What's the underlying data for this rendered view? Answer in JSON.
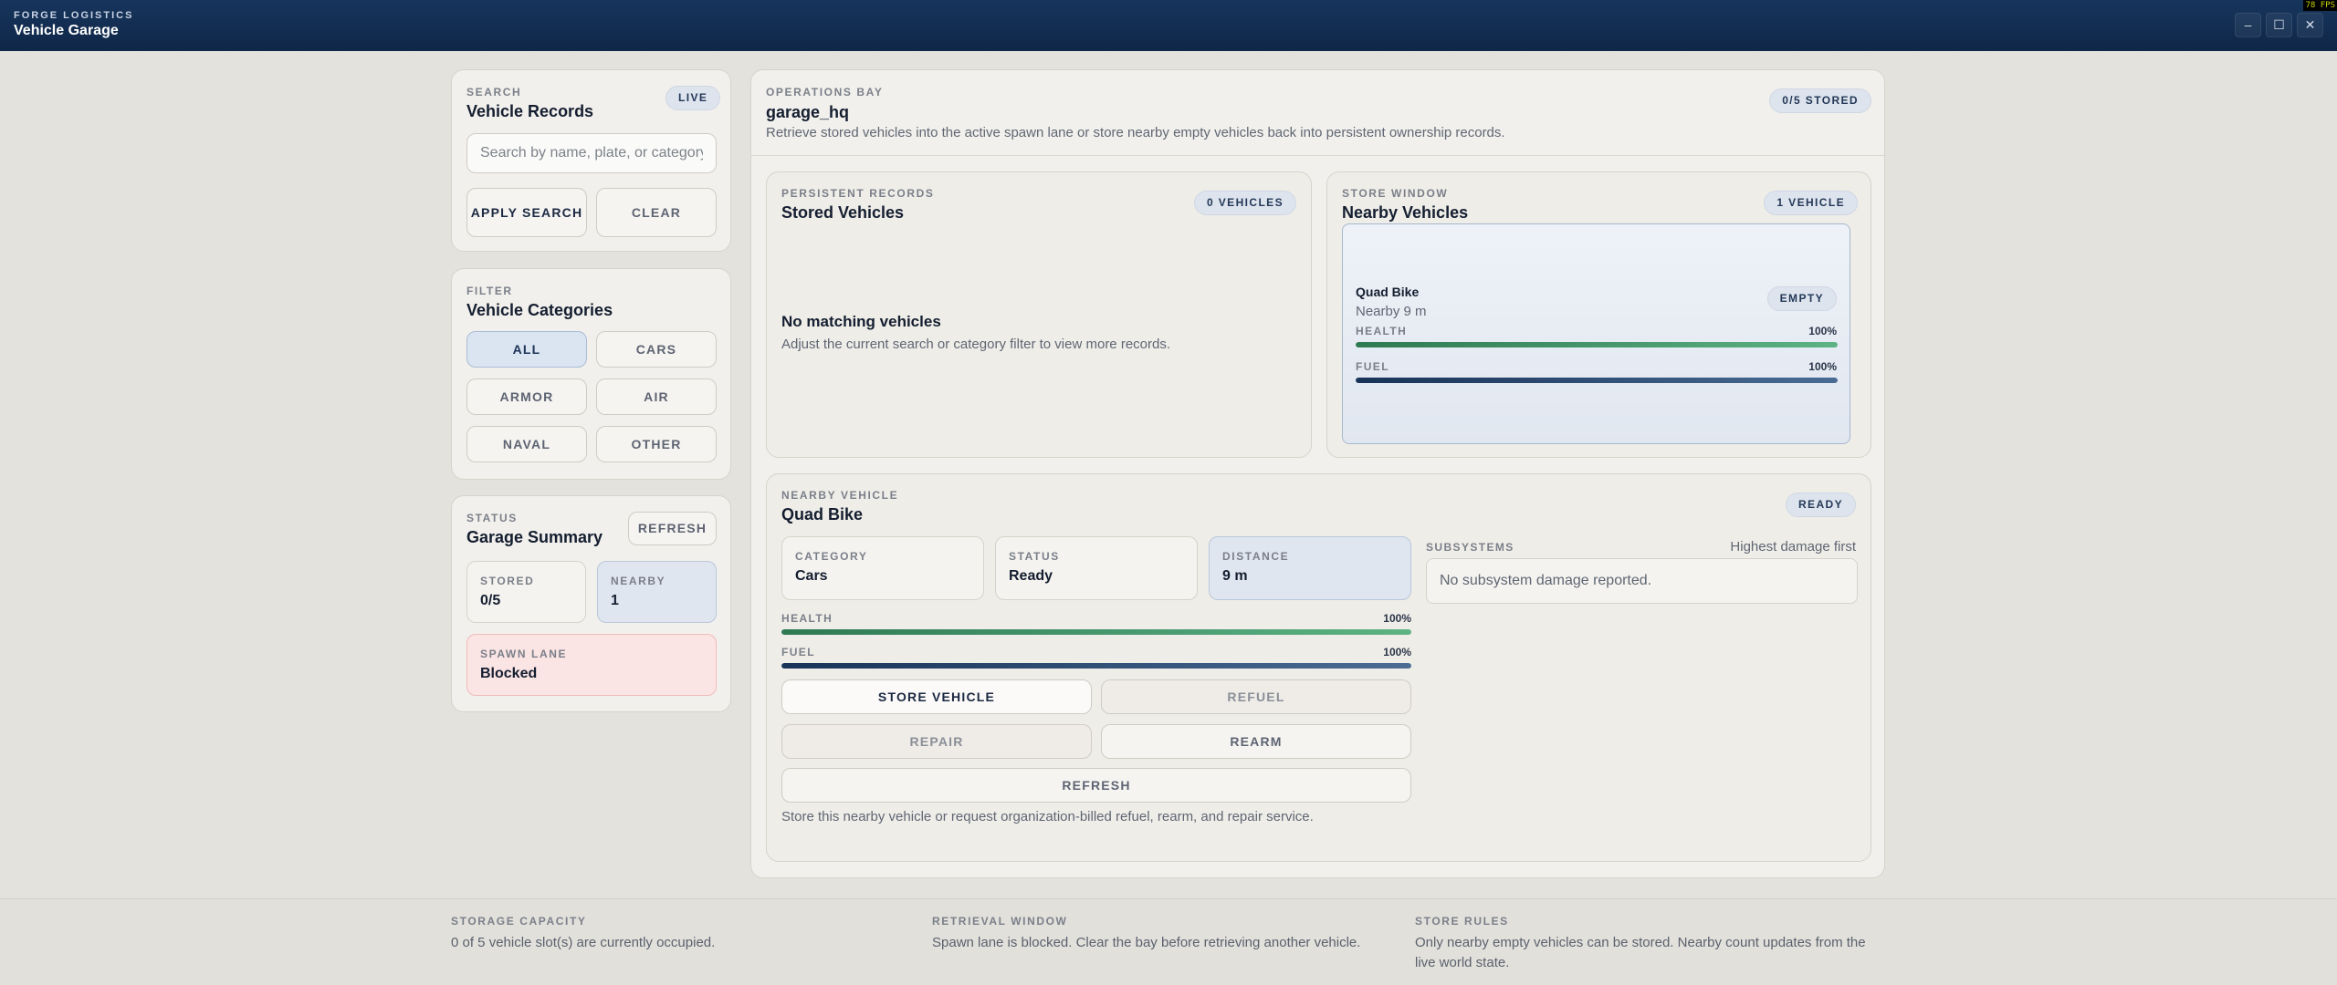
{
  "window": {
    "brand": "FORGE LOGISTICS",
    "title": "Vehicle Garage",
    "minimize": "–",
    "maximize": "☐",
    "close": "✕",
    "fps": "78 FPS"
  },
  "search": {
    "eyebrow": "SEARCH",
    "title": "Vehicle Records",
    "badge": "LIVE",
    "placeholder": "Search by name, plate, or category",
    "value": "",
    "apply_label": "APPLY SEARCH",
    "clear_label": "CLEAR"
  },
  "filter": {
    "eyebrow": "FILTER",
    "title": "Vehicle Categories",
    "categories": [
      {
        "label": "ALL",
        "selected": true
      },
      {
        "label": "CARS",
        "selected": false
      },
      {
        "label": "ARMOR",
        "selected": false
      },
      {
        "label": "AIR",
        "selected": false
      },
      {
        "label": "NAVAL",
        "selected": false
      },
      {
        "label": "OTHER",
        "selected": false
      }
    ]
  },
  "status": {
    "eyebrow": "STATUS",
    "title": "Garage Summary",
    "refresh_label": "REFRESH",
    "stored_label": "STORED",
    "stored_value": "0/5",
    "nearby_label": "NEARBY",
    "nearby_value": "1",
    "spawn_label": "SPAWN LANE",
    "spawn_value": "Blocked"
  },
  "operations": {
    "eyebrow": "OPERATIONS BAY",
    "title": "garage_hq",
    "description": "Retrieve stored vehicles into the active spawn lane or store nearby empty vehicles back into persistent ownership records.",
    "badge": "0/5 STORED"
  },
  "stored_vehicles": {
    "eyebrow": "PERSISTENT RECORDS",
    "title": "Stored Vehicles",
    "badge": "0 VEHICLES",
    "empty_title": "No matching vehicles",
    "empty_text": "Adjust the current search or category filter to view more records."
  },
  "nearby_vehicles": {
    "eyebrow": "STORE WINDOW",
    "title": "Nearby Vehicles",
    "badge": "1 VEHICLE",
    "card": {
      "name": "Quad Bike",
      "subtitle": "Nearby 9 m",
      "badge": "EMPTY",
      "health_label": "HEALTH",
      "health_value": "100%",
      "health_fraction": 1.0,
      "fuel_label": "FUEL",
      "fuel_value": "100%",
      "fuel_fraction": 1.0
    }
  },
  "selected_vehicle": {
    "eyebrow": "NEARBY VEHICLE",
    "title": "Quad Bike",
    "badge": "READY",
    "category_label": "CATEGORY",
    "category_value": "Cars",
    "status_label": "STATUS",
    "status_value": "Ready",
    "distance_label": "DISTANCE",
    "distance_value": "9 m",
    "health_label": "HEALTH",
    "health_value": "100%",
    "health_fraction": 1.0,
    "fuel_label": "FUEL",
    "fuel_value": "100%",
    "fuel_fraction": 1.0,
    "store_label": "STORE VEHICLE",
    "refuel_label": "REFUEL",
    "repair_label": "REPAIR",
    "rearm_label": "REARM",
    "refresh_label": "REFRESH",
    "help_text": "Store this nearby vehicle or request organization-billed refuel, rearm, and repair service.",
    "subsystems_label": "SUBSYSTEMS",
    "subsystems_sort": "Highest damage first",
    "subsystems_empty": "No subsystem damage reported."
  },
  "footer": {
    "capacity_label": "STORAGE CAPACITY",
    "capacity_text": "0 of 5 vehicle slot(s) are currently occupied.",
    "retrieval_label": "RETRIEVAL WINDOW",
    "retrieval_text": "Spawn lane is blocked. Clear the bay before retrieving another vehicle.",
    "rules_label": "STORE RULES",
    "rules_text": "Only nearby empty vehicles can be stored. Nearby count updates from the live world state."
  },
  "colors": {
    "titlebar": "#0f2748",
    "background": "#e4e2dd",
    "accent": "#243857",
    "health_bar": "#2e7a52",
    "fuel_bar": "#173358",
    "spawn_blocked": "#fbe4e4"
  }
}
